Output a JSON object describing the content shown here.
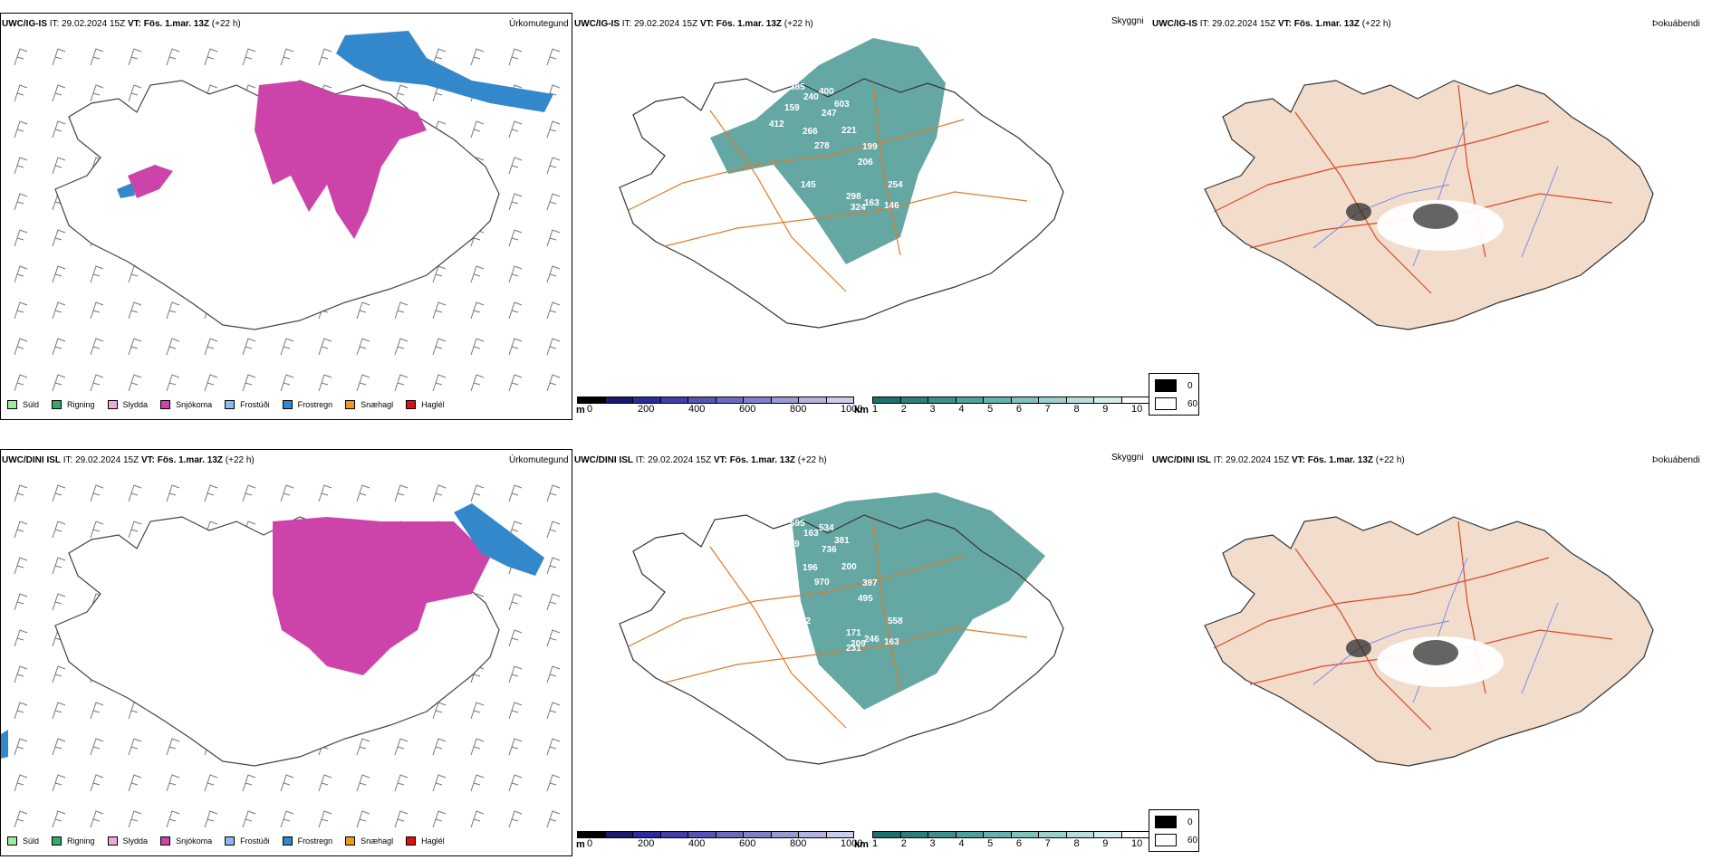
{
  "rows": [
    {
      "model": "UWC/IG-IS",
      "it_label": "IT: 29.02.2024 15Z",
      "vt_label": "VT: Fös. 1.mar. 13Z",
      "lead": "(+22 h)"
    },
    {
      "model": "UWC/DINI ISL",
      "it_label": "IT: 29.02.2024 15Z",
      "vt_label": "VT: Fös. 1.mar. 13Z",
      "lead": "(+22 h)"
    }
  ],
  "panel_titles": {
    "precip_type": "Úrkomutegund",
    "ceiling": "Skyggni",
    "fog": "Þokuábendi"
  },
  "precip_legend": [
    {
      "label": "Súld",
      "color": "#99ee99"
    },
    {
      "label": "Rigning",
      "color": "#33aa66"
    },
    {
      "label": "Slydda",
      "color": "#f0a8d8"
    },
    {
      "label": "Snjókoma",
      "color": "#cc44aa"
    },
    {
      "label": "Frostúði",
      "color": "#88bbee"
    },
    {
      "label": "Frostregn",
      "color": "#3388cc"
    },
    {
      "label": "Snæhagl",
      "color": "#ee9922"
    },
    {
      "label": "Haglél",
      "color": "#dd1111"
    }
  ],
  "ceiling_scale": {
    "unit": "m",
    "ticks": [
      "0",
      "200",
      "400",
      "600",
      "800",
      "1000"
    ],
    "colors": [
      "#000000",
      "#1a1a6e",
      "#2b2b99",
      "#3f3fa6",
      "#5555b3",
      "#6b6bbf",
      "#8080c8",
      "#9999d3",
      "#b3b3dd",
      "#ccccee"
    ]
  },
  "visibility_scale": {
    "unit": "km",
    "ticks": [
      "1",
      "2",
      "3",
      "4",
      "5",
      "6",
      "7",
      "8",
      "9",
      "10"
    ],
    "colors": [
      "#1f6f6a",
      "#2e7f79",
      "#3e8e89",
      "#52a09b",
      "#68b0ab",
      "#82c0bc",
      "#9ccfcc",
      "#b8dedc",
      "#d2ecea",
      "#ffffff"
    ]
  },
  "fog_legend": [
    {
      "label": "0",
      "color": "#000000"
    },
    {
      "label": "60",
      "color": "#ffffff"
    }
  ],
  "ceiling_labels": [
    [
      "385",
      "240",
      "400",
      "603",
      "159",
      "247",
      "412",
      "266",
      "221",
      "278",
      "199",
      "206",
      "254",
      "298",
      "324",
      "163",
      "146",
      "308",
      "145"
    ],
    [
      "595",
      "163",
      "534",
      "381",
      "389",
      "736",
      "240",
      "196",
      "200",
      "970",
      "397",
      "495",
      "558",
      "171",
      "209",
      "246",
      "163",
      "156",
      "12",
      "231"
    ]
  ],
  "colors": {
    "snow": "#cc44aa",
    "freezing_rain": "#3388cc",
    "land_fog": "#f2dccc",
    "roads": "#e07a2a",
    "roads_fog": "#d9492a",
    "rivers": "#6f86f0",
    "teal": "#3f918c"
  }
}
